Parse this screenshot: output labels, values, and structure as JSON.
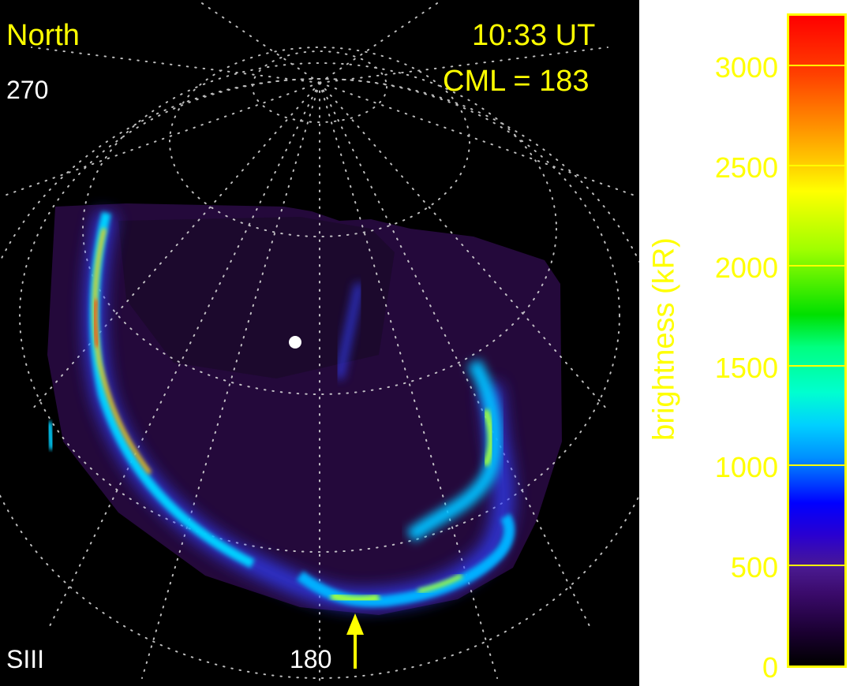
{
  "labels": {
    "hemisphere": "North",
    "lon_top": "270",
    "time": "10:33 UT",
    "cml": "CML = 183",
    "system": "SIII",
    "lon_bottom": "180"
  },
  "colorbar": {
    "title": "brightness (kR)",
    "min": 0,
    "max": 3250,
    "ticks": [
      {
        "value": 0,
        "label": "0"
      },
      {
        "value": 500,
        "label": "500"
      },
      {
        "value": 1000,
        "label": "1000"
      },
      {
        "value": 1500,
        "label": "1500"
      },
      {
        "value": 2000,
        "label": "2000"
      },
      {
        "value": 2500,
        "label": "2500"
      },
      {
        "value": 3000,
        "label": "3000"
      }
    ]
  },
  "colors": {
    "label_yellow": "#ffff00",
    "label_white": "#ffffff",
    "background": "#000000"
  },
  "icons": {
    "pointer": "up-arrow-icon",
    "pole_marker": "white-dot-icon"
  }
}
